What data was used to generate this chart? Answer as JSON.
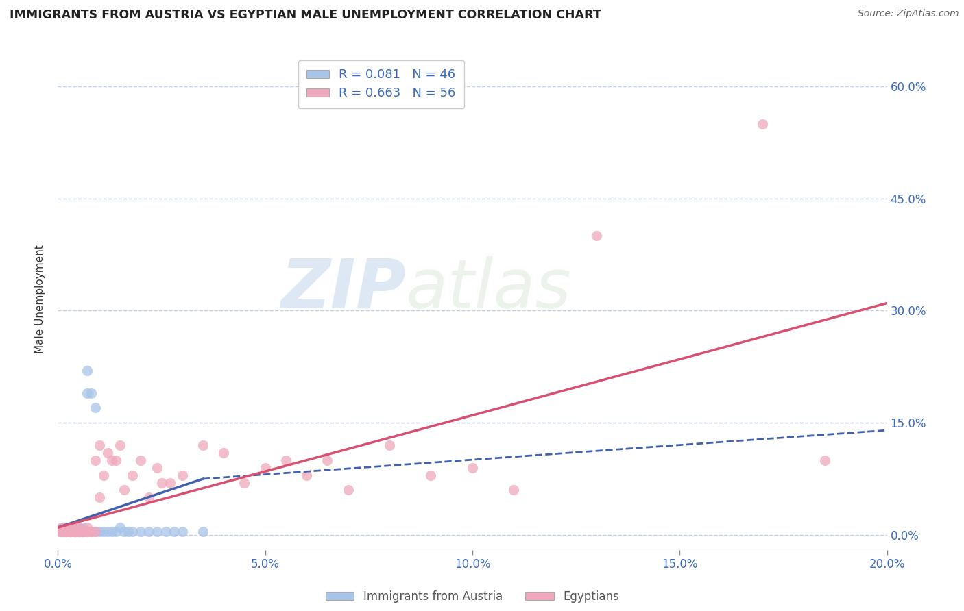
{
  "title": "IMMIGRANTS FROM AUSTRIA VS EGYPTIAN MALE UNEMPLOYMENT CORRELATION CHART",
  "source": "Source: ZipAtlas.com",
  "ylabel": "Male Unemployment",
  "xlim": [
    0.0,
    0.2
  ],
  "ylim": [
    -0.02,
    0.65
  ],
  "legend_austria": "R = 0.081   N = 46",
  "legend_egypt": "R = 0.663   N = 56",
  "austria_color": "#a8c4e8",
  "egypt_color": "#f0a8bc",
  "austria_line_color": "#4060b0",
  "egypt_line_color": "#d85070",
  "austria_scatter": {
    "x": [
      0.0005,
      0.001,
      0.001,
      0.0015,
      0.0015,
      0.002,
      0.002,
      0.002,
      0.002,
      0.003,
      0.003,
      0.003,
      0.003,
      0.003,
      0.004,
      0.004,
      0.004,
      0.004,
      0.005,
      0.005,
      0.005,
      0.006,
      0.006,
      0.006,
      0.007,
      0.007,
      0.008,
      0.008,
      0.009,
      0.009,
      0.01,
      0.011,
      0.012,
      0.013,
      0.014,
      0.015,
      0.016,
      0.017,
      0.018,
      0.02,
      0.022,
      0.024,
      0.026,
      0.028,
      0.03,
      0.035
    ],
    "y": [
      0.005,
      0.005,
      0.01,
      0.005,
      0.01,
      0.005,
      0.005,
      0.01,
      0.01,
      0.005,
      0.005,
      0.01,
      0.01,
      0.005,
      0.005,
      0.005,
      0.01,
      0.005,
      0.005,
      0.005,
      0.01,
      0.005,
      0.01,
      0.005,
      0.19,
      0.22,
      0.005,
      0.19,
      0.005,
      0.17,
      0.005,
      0.005,
      0.005,
      0.005,
      0.005,
      0.01,
      0.005,
      0.005,
      0.005,
      0.005,
      0.005,
      0.005,
      0.005,
      0.005,
      0.005,
      0.005
    ]
  },
  "egypt_scatter": {
    "x": [
      0.0005,
      0.001,
      0.001,
      0.0015,
      0.002,
      0.002,
      0.002,
      0.003,
      0.003,
      0.003,
      0.003,
      0.004,
      0.004,
      0.004,
      0.005,
      0.005,
      0.005,
      0.006,
      0.006,
      0.007,
      0.007,
      0.007,
      0.008,
      0.008,
      0.009,
      0.009,
      0.01,
      0.01,
      0.011,
      0.012,
      0.013,
      0.014,
      0.015,
      0.016,
      0.018,
      0.02,
      0.022,
      0.024,
      0.025,
      0.027,
      0.03,
      0.035,
      0.04,
      0.045,
      0.05,
      0.055,
      0.06,
      0.065,
      0.07,
      0.08,
      0.09,
      0.1,
      0.11,
      0.13,
      0.17,
      0.185
    ],
    "y": [
      0.005,
      0.005,
      0.01,
      0.005,
      0.005,
      0.01,
      0.005,
      0.005,
      0.005,
      0.01,
      0.005,
      0.005,
      0.005,
      0.01,
      0.005,
      0.005,
      0.01,
      0.005,
      0.005,
      0.005,
      0.01,
      0.005,
      0.005,
      0.005,
      0.005,
      0.1,
      0.12,
      0.05,
      0.08,
      0.11,
      0.1,
      0.1,
      0.12,
      0.06,
      0.08,
      0.1,
      0.05,
      0.09,
      0.07,
      0.07,
      0.08,
      0.12,
      0.11,
      0.07,
      0.09,
      0.1,
      0.08,
      0.1,
      0.06,
      0.12,
      0.08,
      0.09,
      0.06,
      0.4,
      0.55,
      0.1
    ]
  },
  "austria_trendline": {
    "x": [
      0.0,
      0.035
    ],
    "y": [
      0.01,
      0.075
    ]
  },
  "austria_dashed_trendline": {
    "x": [
      0.035,
      0.2
    ],
    "y": [
      0.075,
      0.14
    ]
  },
  "egypt_trendline": {
    "x": [
      0.0,
      0.2
    ],
    "y": [
      0.01,
      0.31
    ]
  },
  "watermark_zip": "ZIP",
  "watermark_atlas": "atlas",
  "background_color": "#ffffff",
  "grid_color": "#c0cfe0"
}
